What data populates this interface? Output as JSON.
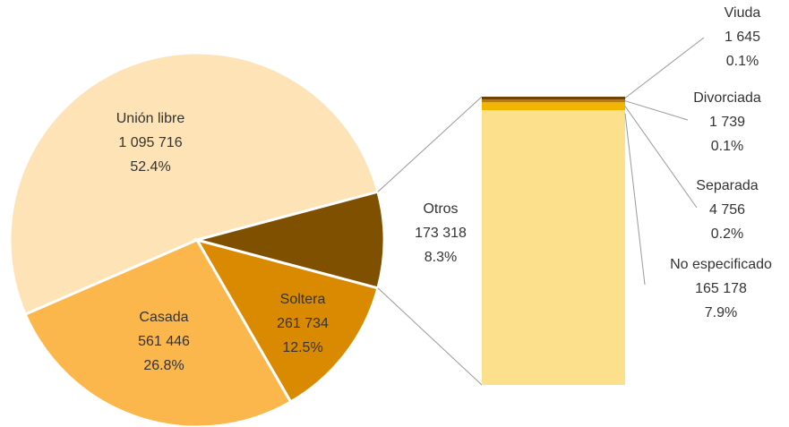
{
  "chart_data": {
    "type": "pie",
    "categories": [
      "Unión libre",
      "Casada",
      "Soltera",
      "Otros"
    ],
    "values": [
      1095716,
      561446,
      261734,
      173318
    ],
    "value_labels": [
      "1 095 716",
      "561 446",
      "261 734",
      "173 318"
    ],
    "percents": [
      52.4,
      26.8,
      12.5,
      8.3
    ],
    "percent_labels": [
      "52.4%",
      "26.8%",
      "12.5%",
      "8.3%"
    ],
    "colors": [
      "#fde3b6",
      "#fbb74c",
      "#d98a00",
      "#7f5000"
    ],
    "breakdown": {
      "categories": [
        "Viuda",
        "Divorciada",
        "Separada",
        "No especificado"
      ],
      "values": [
        1645,
        1739,
        4756,
        165178
      ],
      "value_labels": [
        "1 645",
        "1 739",
        "4 756",
        "165 178"
      ],
      "percents": [
        0.1,
        0.1,
        0.2,
        7.9
      ],
      "percent_labels": [
        "0.1%",
        "0.1%",
        "0.2%",
        "7.9%"
      ],
      "colors": [
        "#6e4200",
        "#b87a10",
        "#f2b600",
        "#fde08c"
      ]
    }
  }
}
